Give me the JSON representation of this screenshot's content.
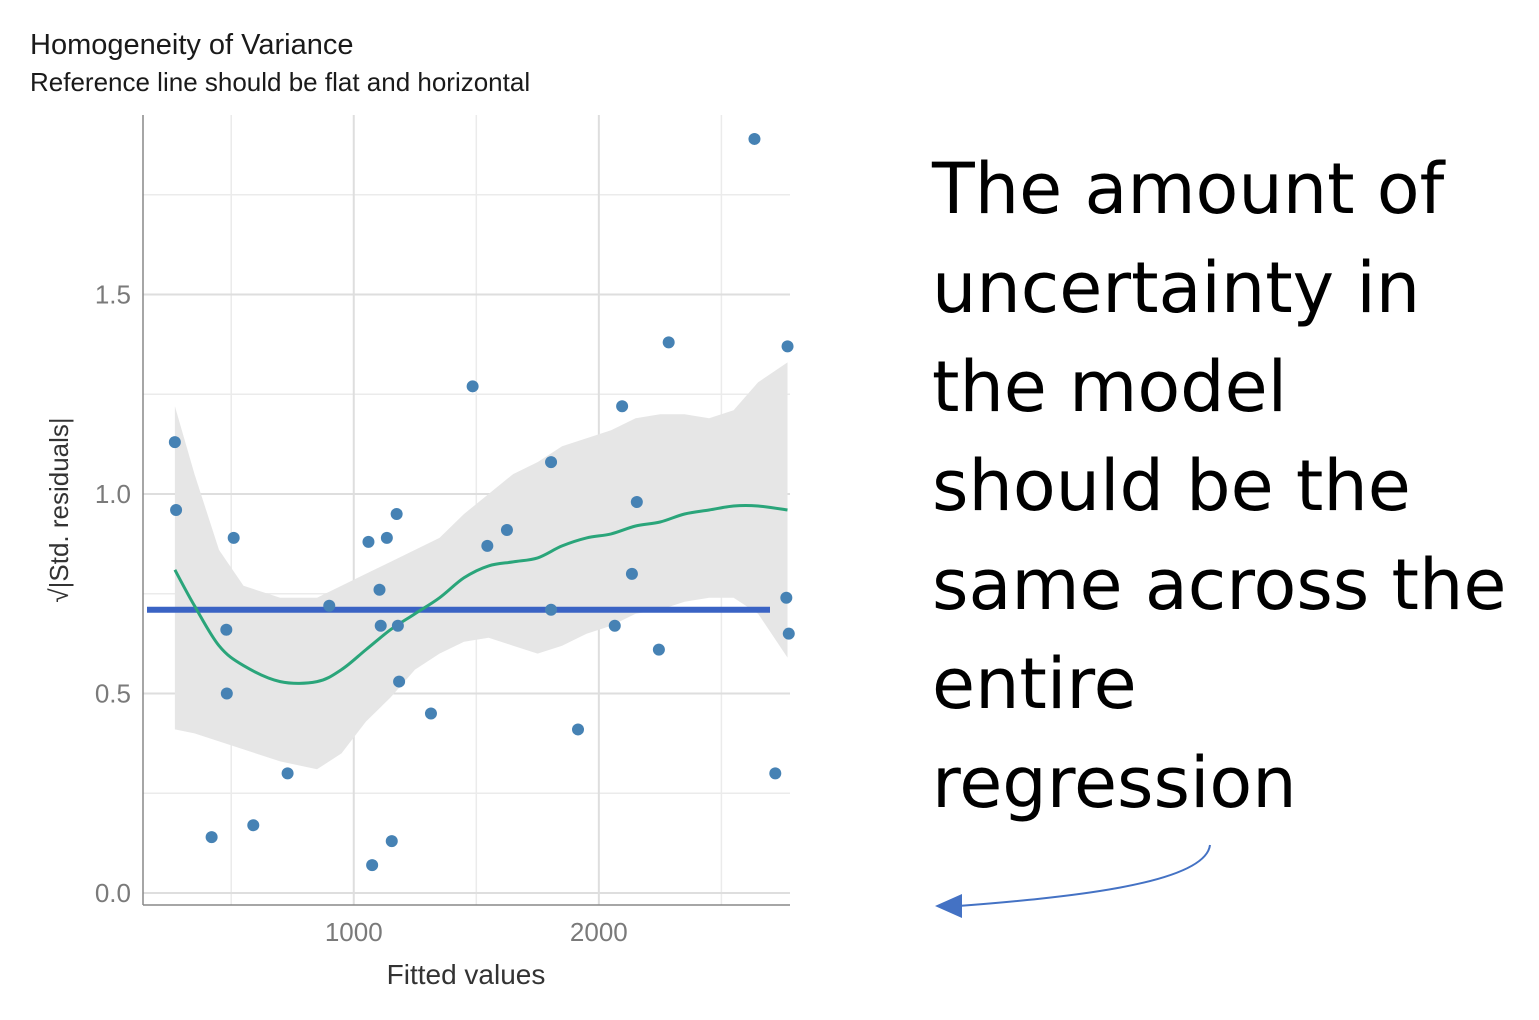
{
  "chart_data": {
    "type": "scatter",
    "title": "Homogeneity of Variance",
    "subtitle": "Reference line should be flat and horizontal",
    "xlabel": "Fitted values",
    "ylabel": "|Std. residuals|",
    "ylabel_prefix": "√",
    "xlim": [
      140,
      2780
    ],
    "ylim": [
      -0.03,
      1.95
    ],
    "x_ticks": [
      1000,
      2000
    ],
    "x_tick_labels": [
      "1000",
      "2000"
    ],
    "x_minor_ticks": [
      500,
      1500,
      2500
    ],
    "y_ticks": [
      0.0,
      0.5,
      1.0,
      1.5
    ],
    "y_tick_labels": [
      "0.0",
      "0.5",
      "1.0",
      "1.5"
    ],
    "y_minor_ticks": [
      0.25,
      0.75,
      1.25,
      1.75
    ],
    "grid": true,
    "colors": {
      "points": "#4682b4",
      "smooth": "#2aa57a",
      "reference": "#3a63c4",
      "ribbon": "#e6e6e6",
      "arrow": "#4472c4"
    },
    "reference_line": {
      "y": 0.71
    },
    "points": [
      {
        "x": 270,
        "y": 1.13
      },
      {
        "x": 275,
        "y": 0.96
      },
      {
        "x": 420,
        "y": 0.14
      },
      {
        "x": 480,
        "y": 0.66
      },
      {
        "x": 482,
        "y": 0.5
      },
      {
        "x": 510,
        "y": 0.89
      },
      {
        "x": 590,
        "y": 0.17
      },
      {
        "x": 730,
        "y": 0.3
      },
      {
        "x": 900,
        "y": 0.72
      },
      {
        "x": 1060,
        "y": 0.88
      },
      {
        "x": 1075,
        "y": 0.07
      },
      {
        "x": 1105,
        "y": 0.76
      },
      {
        "x": 1110,
        "y": 0.67
      },
      {
        "x": 1135,
        "y": 0.89
      },
      {
        "x": 1155,
        "y": 0.13
      },
      {
        "x": 1175,
        "y": 0.95
      },
      {
        "x": 1180,
        "y": 0.67
      },
      {
        "x": 1185,
        "y": 0.53
      },
      {
        "x": 1315,
        "y": 0.45
      },
      {
        "x": 1485,
        "y": 1.27
      },
      {
        "x": 1545,
        "y": 0.87
      },
      {
        "x": 1625,
        "y": 0.91
      },
      {
        "x": 1805,
        "y": 1.08
      },
      {
        "x": 1805,
        "y": 0.71
      },
      {
        "x": 1915,
        "y": 0.41
      },
      {
        "x": 2065,
        "y": 0.67
      },
      {
        "x": 2095,
        "y": 1.22
      },
      {
        "x": 2135,
        "y": 0.8
      },
      {
        "x": 2155,
        "y": 0.98
      },
      {
        "x": 2245,
        "y": 0.61
      },
      {
        "x": 2285,
        "y": 1.38
      },
      {
        "x": 2635,
        "y": 1.89
      },
      {
        "x": 2720,
        "y": 0.3
      },
      {
        "x": 2765,
        "y": 0.74
      },
      {
        "x": 2770,
        "y": 1.37
      },
      {
        "x": 2775,
        "y": 0.65
      }
    ],
    "smooth": {
      "x": [
        270,
        350,
        450,
        550,
        700,
        850,
        950,
        1050,
        1150,
        1250,
        1350,
        1450,
        1550,
        1650,
        1750,
        1850,
        1950,
        2050,
        2150,
        2250,
        2350,
        2450,
        2550,
        2650,
        2770
      ],
      "y": [
        0.81,
        0.72,
        0.62,
        0.57,
        0.53,
        0.53,
        0.56,
        0.61,
        0.66,
        0.7,
        0.74,
        0.79,
        0.82,
        0.83,
        0.84,
        0.87,
        0.89,
        0.9,
        0.92,
        0.93,
        0.95,
        0.96,
        0.97,
        0.97,
        0.96
      ],
      "lower": [
        0.41,
        0.4,
        0.38,
        0.36,
        0.33,
        0.31,
        0.35,
        0.43,
        0.49,
        0.56,
        0.6,
        0.63,
        0.64,
        0.62,
        0.6,
        0.62,
        0.65,
        0.67,
        0.7,
        0.71,
        0.73,
        0.74,
        0.74,
        0.7,
        0.59
      ],
      "upper": [
        1.22,
        1.05,
        0.86,
        0.77,
        0.74,
        0.74,
        0.77,
        0.8,
        0.83,
        0.86,
        0.89,
        0.95,
        1.0,
        1.05,
        1.08,
        1.12,
        1.14,
        1.16,
        1.19,
        1.2,
        1.2,
        1.19,
        1.21,
        1.28,
        1.33
      ]
    }
  },
  "annotation": {
    "lines": [
      "The amount of",
      "uncertainty in",
      "the model",
      "should be the",
      "same across the",
      "entire",
      "regression"
    ]
  }
}
